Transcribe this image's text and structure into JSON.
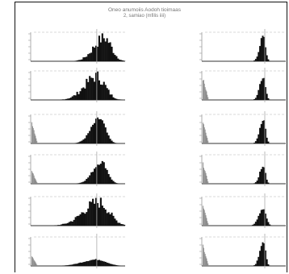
{
  "header": {
    "title_line1": "Oneo anumoiis  Aodoh tioimaas",
    "title_line2": "2, samiao (mfilis iiii)"
  },
  "colors": {
    "bar": "#111111",
    "axis": "#999999",
    "tick": "#cccccc",
    "marker": "#aaaaaa"
  },
  "chart_data": [
    {
      "type": "bar",
      "column": "left",
      "row": 1,
      "peak_x": 0.78,
      "width": 0.11,
      "height": 0.85,
      "low_tail": 0.0,
      "spiky": true,
      "marker_x": 0.7
    },
    {
      "type": "bar",
      "column": "left",
      "row": 2,
      "peak_x": 0.7,
      "width": 0.13,
      "height": 0.85,
      "low_tail": 0.0,
      "spiky": true,
      "marker_x": 0.7
    },
    {
      "type": "bar",
      "column": "left",
      "row": 3,
      "peak_x": 0.73,
      "width": 0.09,
      "height": 0.85,
      "low_tail": 0.75,
      "spiky": false,
      "marker_x": 0.7
    },
    {
      "type": "bar",
      "column": "left",
      "row": 4,
      "peak_x": 0.75,
      "width": 0.09,
      "height": 0.75,
      "low_tail": 0.45,
      "spiky": false,
      "marker_x": 0.7
    },
    {
      "type": "bar",
      "column": "left",
      "row": 5,
      "peak_x": 0.72,
      "width": 0.16,
      "height": 0.85,
      "low_tail": 0.0,
      "spiky": true,
      "marker_x": 0.7
    },
    {
      "type": "bar",
      "column": "left",
      "row": 6,
      "peak_x": 0.7,
      "width": 0.15,
      "height": 0.22,
      "low_tail": 0.35,
      "spiky": false,
      "marker_x": 0.7
    },
    {
      "type": "bar",
      "column": "right",
      "row": 1,
      "peak_x": 0.73,
      "width": 0.04,
      "height": 0.85,
      "low_tail": 0.0,
      "spiky": false,
      "marker_x": 0.75
    },
    {
      "type": "bar",
      "column": "right",
      "row": 2,
      "peak_x": 0.73,
      "width": 0.04,
      "height": 0.8,
      "low_tail": 0.75,
      "spiky": false,
      "marker_x": 0.75
    },
    {
      "type": "bar",
      "column": "right",
      "row": 3,
      "peak_x": 0.73,
      "width": 0.04,
      "height": 0.85,
      "low_tail": 0.75,
      "spiky": false,
      "marker_x": 0.75
    },
    {
      "type": "bar",
      "column": "right",
      "row": 4,
      "peak_x": 0.73,
      "width": 0.04,
      "height": 0.6,
      "low_tail": 0.7,
      "spiky": false,
      "marker_x": 0.75
    },
    {
      "type": "bar",
      "column": "right",
      "row": 5,
      "peak_x": 0.73,
      "width": 0.05,
      "height": 0.6,
      "low_tail": 0.7,
      "spiky": false,
      "marker_x": 0.75
    },
    {
      "type": "bar",
      "column": "right",
      "row": 6,
      "peak_x": 0.73,
      "width": 0.04,
      "height": 0.85,
      "low_tail": 0.7,
      "spiky": false,
      "marker_x": 0.75
    }
  ]
}
